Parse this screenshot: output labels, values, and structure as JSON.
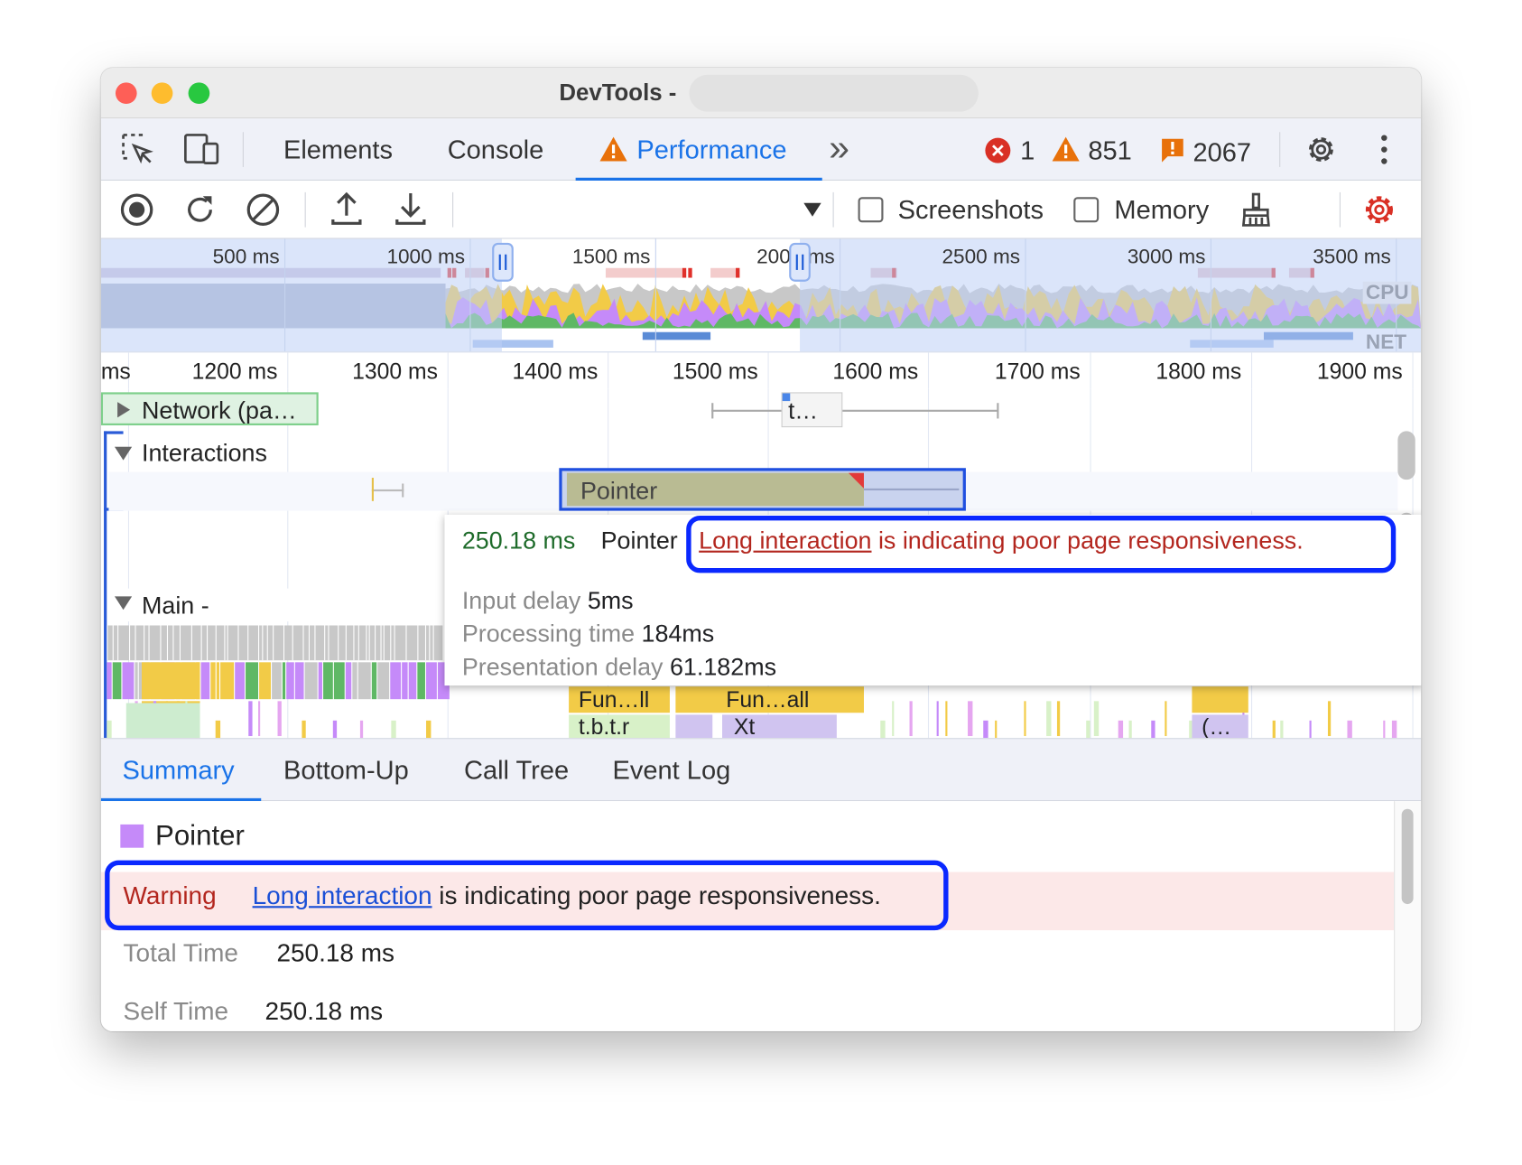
{
  "window": {
    "title": "DevTools -"
  },
  "tabs": {
    "items": [
      {
        "label": "Elements"
      },
      {
        "label": "Console"
      },
      {
        "label": "Performance",
        "active": true,
        "icon": "warning-icon"
      }
    ],
    "more": "»",
    "errors": "1",
    "warnings": "851",
    "issues": "2067"
  },
  "toolbar": {
    "screenshots_label": "Screenshots",
    "screenshots_checked": false,
    "memory_label": "Memory",
    "memory_checked": false
  },
  "overview": {
    "ticks": [
      "500 ms",
      "1000 ms",
      "1500 ms",
      "2000 ms",
      "2500 ms",
      "3000 ms",
      "3500 ms"
    ],
    "cpu_label": "CPU",
    "net_label": "NET"
  },
  "ruler": {
    "ticks": [
      "ms",
      "1200 ms",
      "1300 ms",
      "1400 ms",
      "1500 ms",
      "1600 ms",
      "1700 ms",
      "1800 ms",
      "1900 ms"
    ]
  },
  "tracks": {
    "network": "Network (pa…",
    "network_request": "t…",
    "interactions": "Interactions",
    "pointer": "Pointer",
    "main": "Main -",
    "flame_labels": [
      "Fun…ll",
      "Fun…all",
      "t.b.t.r",
      "Xt",
      "(…"
    ]
  },
  "tooltip": {
    "duration": "250.18 ms",
    "name": "Pointer",
    "link": "Long interaction",
    "message": " is indicating poor page responsiveness.",
    "rows": [
      {
        "label": "Input delay",
        "value": "5ms"
      },
      {
        "label": "Processing time",
        "value": "184ms"
      },
      {
        "label": "Presentation delay",
        "value": "61.182ms"
      }
    ]
  },
  "bottom_tabs": [
    {
      "label": "Summary",
      "active": true
    },
    {
      "label": "Bottom-Up"
    },
    {
      "label": "Call Tree"
    },
    {
      "label": "Event Log"
    }
  ],
  "summary": {
    "title": "Pointer",
    "swatch_color": "#c58af9",
    "warning_label": "Warning",
    "warning_link": "Long interaction",
    "warning_text": " is indicating poor page responsiveness.",
    "total_time_label": "Total Time",
    "total_time": "250.18 ms",
    "self_time_label": "Self Time",
    "self_time": "250.18 ms"
  },
  "colors": {
    "accent": "#1a73e8",
    "highlight": "#0a28ff",
    "warning_red": "#b3261e",
    "scripting": "#f2cb47",
    "rendering": "#c58af9",
    "painting": "#5fb865"
  }
}
